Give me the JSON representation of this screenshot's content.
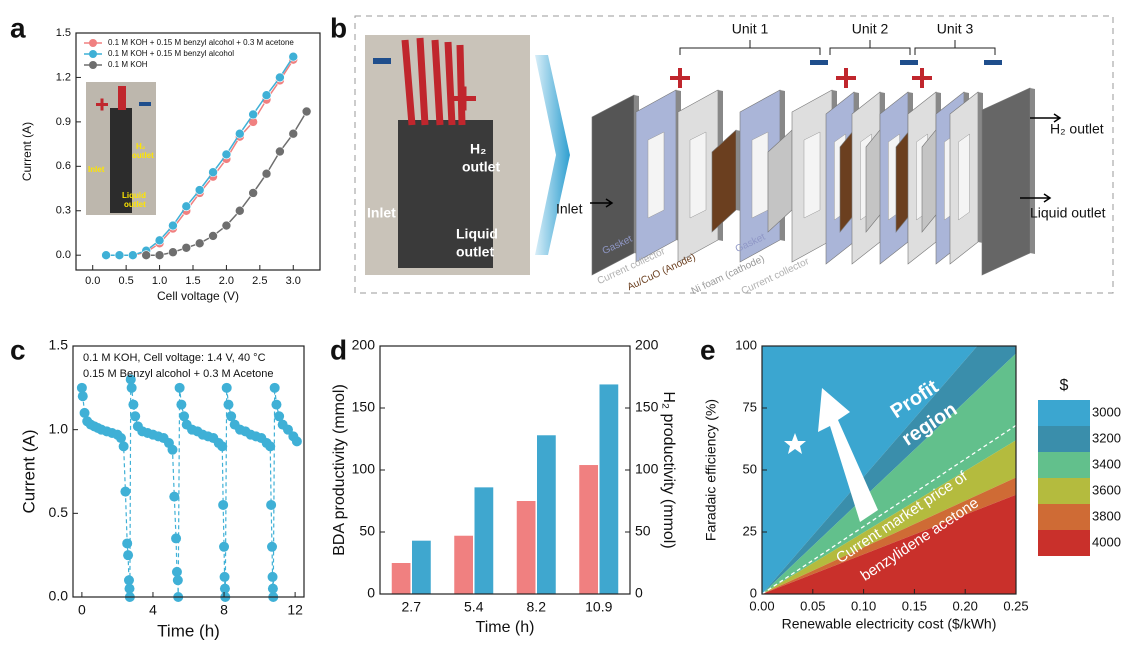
{
  "chart_data": [
    {
      "panel": "a",
      "type": "line",
      "x_label": "Cell voltage (V)",
      "y_label": "Current (A)",
      "xlim": [
        -0.25,
        3.4
      ],
      "ylim": [
        -0.1,
        1.5
      ],
      "xticks": [
        {
          "value": 0,
          "label": "0.0"
        },
        0.5,
        {
          "value": 1,
          "label": "1.0"
        },
        1.5,
        {
          "value": 2,
          "label": "2.0"
        },
        2.5,
        {
          "value": 3,
          "label": "3.0"
        }
      ],
      "yticks": [
        {
          "value": 0,
          "label": "0.0"
        },
        0.3,
        0.6,
        0.9,
        1.2,
        1.5
      ],
      "legend": "upper left",
      "series": [
        {
          "name": "0.1 M KOH + 0.15 M benzyl alcohol + 0.3 M acetone",
          "color": "#f08080",
          "x": [
            0.2,
            0.4,
            0.6,
            0.8,
            1.0,
            1.2,
            1.4,
            1.6,
            1.8,
            2.0,
            2.2,
            2.4,
            2.6,
            2.8,
            3.0
          ],
          "values": [
            0,
            0,
            0,
            0.02,
            0.08,
            0.18,
            0.3,
            0.42,
            0.53,
            0.65,
            0.8,
            0.9,
            1.05,
            1.18,
            1.32
          ]
        },
        {
          "name": "0.1 M KOH + 0.15 M benzyl alcohol",
          "color": "#3fb0d6",
          "x": [
            0.2,
            0.4,
            0.6,
            0.8,
            1.0,
            1.2,
            1.4,
            1.6,
            1.8,
            2.0,
            2.2,
            2.4,
            2.6,
            2.8,
            3.0
          ],
          "values": [
            0,
            0,
            0,
            0.03,
            0.1,
            0.2,
            0.33,
            0.44,
            0.56,
            0.68,
            0.82,
            0.95,
            1.08,
            1.2,
            1.34
          ]
        },
        {
          "name": "0.1 M KOH",
          "color": "#6e6e6e",
          "x": [
            0.8,
            1.0,
            1.2,
            1.4,
            1.6,
            1.8,
            2.0,
            2.2,
            2.4,
            2.6,
            2.8,
            3.0,
            3.2
          ],
          "values": [
            0,
            0,
            0.02,
            0.05,
            0.08,
            0.13,
            0.2,
            0.3,
            0.42,
            0.55,
            0.7,
            0.82,
            0.97
          ]
        }
      ],
      "inset_labels": [
        [
          "H₂",
          "outlet"
        ],
        [
          "Inlet"
        ],
        [
          "Liquid",
          "outlet"
        ]
      ]
    },
    {
      "panel": "c",
      "type": "line",
      "line_style": "dashed",
      "x_label": "Time (h)",
      "y_label": "Current (A)",
      "xlim": [
        -0.5,
        12.5
      ],
      "ylim": [
        0,
        1.5
      ],
      "xticks": [
        0,
        4,
        8,
        12
      ],
      "yticks": [
        {
          "value": 0,
          "label": "0.0"
        },
        0.5,
        {
          "value": 1,
          "label": "1.0"
        },
        1.5
      ],
      "annotations": [
        "0.1 M KOH, Cell voltage: 1.4 V, 40 °C",
        "0.15 M Benzyl alcohol + 0.3 M Acetone"
      ],
      "series": [
        {
          "color": "#3fb0d6",
          "x": [
            0,
            0.05,
            0.15,
            0.3,
            0.5,
            0.7,
            0.9,
            1.1,
            1.4,
            1.7,
            2.0,
            2.2,
            2.35,
            2.45,
            2.55,
            2.6,
            2.65,
            2.68,
            2.7,
            2.75,
            2.8,
            2.9,
            3.0,
            3.15,
            3.4,
            3.7,
            4.0,
            4.3,
            4.6,
            4.9,
            5.1,
            5.2,
            5.3,
            5.35,
            5.4,
            5.42,
            5.5,
            5.6,
            5.75,
            5.9,
            6.2,
            6.5,
            6.8,
            7.1,
            7.4,
            7.7,
            7.9,
            7.95,
            8.0,
            8.03,
            8.05,
            8.07,
            8.15,
            8.25,
            8.4,
            8.6,
            8.9,
            9.2,
            9.5,
            9.8,
            10.1,
            10.4,
            10.6,
            10.65,
            10.7,
            10.73,
            10.75,
            10.77,
            10.85,
            10.95,
            11.1,
            11.3,
            11.6,
            11.9,
            12.1
          ],
          "values": [
            1.25,
            1.2,
            1.1,
            1.05,
            1.03,
            1.02,
            1.01,
            1.0,
            0.99,
            0.98,
            0.97,
            0.95,
            0.9,
            0.63,
            0.32,
            0.25,
            0.1,
            0.05,
            0,
            1.3,
            1.25,
            1.15,
            1.08,
            1.02,
            0.99,
            0.98,
            0.97,
            0.96,
            0.95,
            0.92,
            0.88,
            0.6,
            0.35,
            0.15,
            0.1,
            0,
            1.25,
            1.15,
            1.08,
            1.03,
            1.0,
            0.99,
            0.97,
            0.96,
            0.95,
            0.92,
            0.9,
            0.55,
            0.3,
            0.12,
            0.05,
            0,
            1.25,
            1.15,
            1.08,
            1.03,
            1.0,
            0.99,
            0.97,
            0.96,
            0.95,
            0.92,
            0.9,
            0.55,
            0.3,
            0.12,
            0.05,
            0,
            1.25,
            1.15,
            1.08,
            1.03,
            1.0,
            0.96,
            0.93
          ]
        }
      ]
    },
    {
      "panel": "d",
      "type": "bar",
      "x_label": "Time (h)",
      "y_label": "BDA productivity (mmol)",
      "y2_label": "H₂ productivity (mmol)",
      "categories": [
        "2.7",
        "5.4",
        "8.2",
        "10.9"
      ],
      "ylim": [
        0,
        200
      ],
      "yticks": [
        0,
        50,
        100,
        150,
        200
      ],
      "y2lim": [
        0,
        200
      ],
      "y2ticks": [
        0,
        50,
        100,
        150,
        200
      ],
      "series": [
        {
          "color": "#f08080",
          "values": [
            25,
            47,
            75,
            104
          ]
        },
        {
          "color": "#3fa7cf",
          "axis": "y2",
          "values": [
            43,
            86,
            128,
            169
          ]
        }
      ]
    },
    {
      "panel": "e",
      "type": "contour",
      "x_label": "Renewable electricity cost ($/kWh)",
      "y_label": "Faradaic efficiency (%)",
      "xlim": [
        0,
        0.25
      ],
      "ylim": [
        0,
        100
      ],
      "xticks": [
        {
          "value": 0,
          "label": "0.00"
        },
        0.05,
        {
          "value": 0.1,
          "label": "0.10"
        },
        0.15,
        {
          "value": 0.2,
          "label": "0.20"
        },
        0.25
      ],
      "yticks": [
        0,
        25,
        50,
        75,
        100
      ],
      "legend_title": "$",
      "x": [
        0,
        0.25
      ],
      "series": [
        {
          "name": "3000",
          "color": "#3ba6d0",
          "values": [
            0,
            118
          ]
        },
        {
          "name": "3200",
          "color": "#3a8eab",
          "values": [
            0,
            97
          ]
        },
        {
          "name": "3400",
          "color": "#62c08c",
          "values": [
            0,
            62
          ]
        },
        {
          "name": "3600",
          "color": "#b4bb3e",
          "values": [
            0,
            47
          ]
        },
        {
          "name": "3800",
          "color": "#cf6b35",
          "values": [
            0,
            40
          ]
        },
        {
          "name": "4000",
          "color": "#c9302b",
          "values": [
            0,
            0
          ]
        }
      ],
      "market_price_line": {
        "x": [
          0,
          0.25
        ],
        "values": [
          0,
          68
        ]
      },
      "profit_label": [
        "Profit",
        "region"
      ],
      "market_label": [
        "Current market price of",
        "benzylidene acetone"
      ]
    }
  ],
  "diagram": {
    "panel": "b",
    "photo_labels": [
      [
        "H₂",
        "outlet"
      ],
      [
        "Inlet"
      ],
      [
        "Liquid",
        "outlet"
      ]
    ],
    "units": [
      "Unit 1",
      "Unit 2",
      "Unit 3"
    ],
    "ports": [
      "Inlet",
      "H₂ outlet",
      "Liquid outlet"
    ],
    "parts": [
      "Gasket",
      "Current collector",
      "Au/CuO (Anode)",
      "Gasket",
      "Ni foam (cathode)",
      "Current collector"
    ]
  }
}
